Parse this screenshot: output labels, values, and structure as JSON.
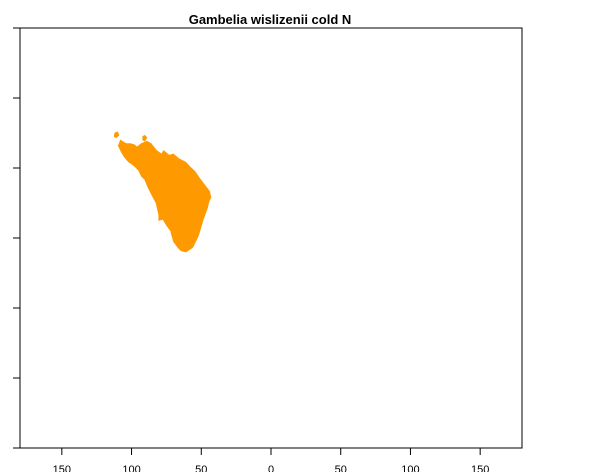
{
  "title": "Gambelia wislizenii cold N",
  "colors": {
    "range_fill": "#ff9900",
    "axis": "#000000",
    "background": "#ffffff"
  },
  "chart_data": {
    "type": "heatmap",
    "title": "Gambelia wislizenii cold N",
    "xlabel": "",
    "ylabel": "",
    "xlim": [
      -180,
      180
    ],
    "ylim": [
      -90,
      90
    ],
    "x_ticks": [
      "150",
      "100",
      "50",
      "0",
      "50",
      "100",
      "150"
    ],
    "x_tick_values": [
      -150,
      -100,
      -50,
      0,
      50,
      100,
      150
    ],
    "y_tick_values": [
      -90,
      -60,
      -30,
      0,
      30,
      60,
      90
    ],
    "y_tick_labels_visible": false,
    "grid": false,
    "legend": "none",
    "series": [
      {
        "fill": "#ff9900",
        "regions": [
          {
            "polygon": [
              [
                -108.0,
                42.0
              ],
              [
                -104.0,
                40.5
              ],
              [
                -101.0,
                40.5
              ],
              [
                -98.0,
                40.0
              ],
              [
                -96.0,
                39.0
              ],
              [
                -93.0,
                40.5
              ],
              [
                -89.0,
                41.5
              ],
              [
                -86.0,
                40.5
              ],
              [
                -82.0,
                37.5
              ],
              [
                -78.5,
                36.0
              ],
              [
                -77.0,
                37.5
              ],
              [
                -73.0,
                35.5
              ],
              [
                -70.0,
                36.0
              ],
              [
                -66.0,
                34.0
              ],
              [
                -61.0,
                32.5
              ],
              [
                -58.0,
                30.5
              ],
              [
                -54.5,
                28.5
              ],
              [
                -51.0,
                25.5
              ],
              [
                -46.0,
                21.5
              ],
              [
                -44.0,
                20.0
              ],
              [
                -43.0,
                17.5
              ],
              [
                -44.5,
                15.5
              ],
              [
                -45.5,
                13.0
              ],
              [
                -48.5,
                8.0
              ],
              [
                -52.0,
                1.0
              ],
              [
                -56.0,
                -4.0
              ],
              [
                -58.5,
                -5.0
              ],
              [
                -61.0,
                -6.0
              ],
              [
                -64.5,
                -5.5
              ],
              [
                -67.0,
                -4.0
              ],
              [
                -70.0,
                -1.5
              ],
              [
                -72.0,
                3.0
              ],
              [
                -75.0,
                5.5
              ],
              [
                -77.5,
                8.0
              ],
              [
                -80.5,
                7.5
              ],
              [
                -80.5,
                10.0
              ],
              [
                -82.5,
                15.0
              ],
              [
                -86.0,
                19.0
              ],
              [
                -88.5,
                22.0
              ],
              [
                -90.5,
                25.0
              ],
              [
                -93.0,
                26.5
              ],
              [
                -95.0,
                29.0
              ],
              [
                -97.5,
                30.5
              ],
              [
                -99.5,
                31.5
              ],
              [
                -102.0,
                32.5
              ],
              [
                -105.0,
                34.5
              ],
              [
                -107.5,
                37.0
              ],
              [
                -109.5,
                39.5
              ]
            ]
          },
          {
            "polygon": [
              [
                -109.5,
                39.5
              ],
              [
                -106.0,
                38.0
              ],
              [
                -104.0,
                37.0
              ],
              [
                -103.0,
                38.5
              ],
              [
                -105.5,
                40.5
              ]
            ]
          },
          {
            "polygon": [
              [
                -96.0,
                39.0
              ],
              [
                -93.5,
                38.5
              ],
              [
                -91.5,
                37.0
              ],
              [
                -90.5,
                38.5
              ],
              [
                -92.5,
                40.0
              ]
            ]
          },
          {
            "polygon": [
              [
                -92.0,
                43.5
              ],
              [
                -90.5,
                44.0
              ],
              [
                -89.0,
                43.0
              ],
              [
                -90.5,
                41.5
              ],
              [
                -92.0,
                42.0
              ]
            ]
          },
          {
            "polygon": [
              [
                -85.5,
                33.5
              ],
              [
                -83.5,
                33.5
              ],
              [
                -83.5,
                31.5
              ],
              [
                -85.5,
                31.5
              ]
            ]
          },
          {
            "polygon": [
              [
                -82.0,
                26.5
              ],
              [
                -80.0,
                26.5
              ],
              [
                -80.0,
                24.5
              ],
              [
                -82.0,
                24.5
              ]
            ]
          },
          {
            "polygon": [
              [
                -112.0,
                45.0
              ],
              [
                -110.0,
                45.5
              ],
              [
                -109.0,
                44.0
              ],
              [
                -111.0,
                43.0
              ],
              [
                -112.5,
                43.5
              ]
            ]
          }
        ]
      }
    ]
  }
}
